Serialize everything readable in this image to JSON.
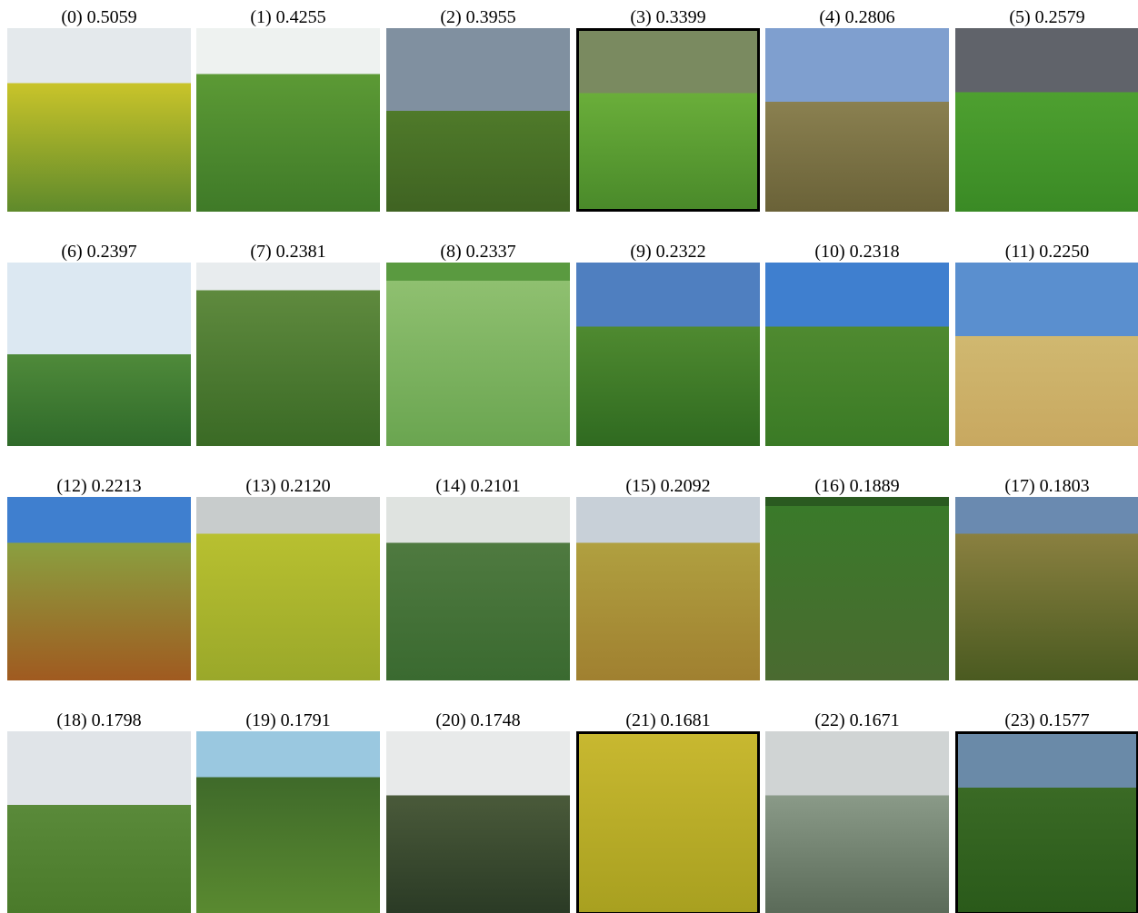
{
  "grid": {
    "captions": [
      "(0) 0.5059",
      "(1) 0.4255",
      "(2) 0.3955",
      "(3) 0.3399",
      "(4) 0.2806",
      "(5) 0.2579",
      "(6) 0.2397",
      "(7) 0.2381",
      "(8) 0.2337",
      "(9) 0.2322",
      "(10) 0.2318",
      "(11) 0.2250",
      "(12) 0.2213",
      "(13) 0.2120",
      "(14) 0.2101",
      "(15) 0.2092",
      "(16) 0.1889",
      "(17) 0.1803",
      "(18) 0.1798",
      "(19) 0.1791",
      "(20) 0.1748",
      "(21) 0.1681",
      "(22) 0.1671",
      "(23) 0.1577"
    ]
  }
}
